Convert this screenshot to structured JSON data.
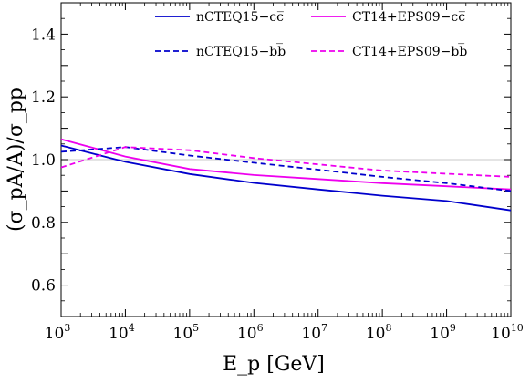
{
  "chart_data": {
    "type": "line",
    "xlabel": "E_p [GeV]",
    "ylabel": "(σ_pA/A)/σ_pp",
    "xscale": "log",
    "xlim": [
      1000,
      10000000000
    ],
    "ylim": [
      0.5,
      1.5
    ],
    "x_ticks": [
      {
        "base": "10",
        "exp": "3",
        "value": 1000
      },
      {
        "base": "10",
        "exp": "4",
        "value": 10000
      },
      {
        "base": "10",
        "exp": "5",
        "value": 100000
      },
      {
        "base": "10",
        "exp": "6",
        "value": 1000000
      },
      {
        "base": "10",
        "exp": "7",
        "value": 10000000
      },
      {
        "base": "10",
        "exp": "8",
        "value": 100000000
      },
      {
        "base": "10",
        "exp": "9",
        "value": 1000000000
      },
      {
        "base": "10",
        "exp": "10",
        "value": 10000000000
      }
    ],
    "y_ticks": [
      {
        "label": "0.6",
        "value": 0.6
      },
      {
        "label": "0.8",
        "value": 0.8
      },
      {
        "label": "1.0",
        "value": 1.0
      },
      {
        "label": "1.2",
        "value": 1.2
      },
      {
        "label": "1.4",
        "value": 1.4
      }
    ],
    "reference_line": 1.0,
    "legend_position": "top",
    "series": [
      {
        "name": "nCTEQ15−cc̅",
        "color": "#0000cc",
        "dash": "solid",
        "x": [
          1000,
          10000,
          100000,
          1000000,
          10000000,
          100000000,
          1000000000,
          10000000000
        ],
        "y": [
          1.045,
          0.993,
          0.954,
          0.926,
          0.905,
          0.885,
          0.868,
          0.838
        ]
      },
      {
        "name": "CT14+EPS09−cc̅",
        "color": "#ee00ee",
        "dash": "solid",
        "x": [
          1000,
          10000,
          100000,
          1000000,
          10000000,
          100000000,
          1000000000,
          10000000000
        ],
        "y": [
          1.065,
          1.01,
          0.97,
          0.951,
          0.938,
          0.925,
          0.915,
          0.905
        ]
      },
      {
        "name": "nCTEQ15−bb̅",
        "color": "#0000cc",
        "dash": "dashed",
        "x": [
          1000,
          10000,
          100000,
          1000000,
          10000000,
          100000000,
          1000000000,
          10000000000
        ],
        "y": [
          1.025,
          1.04,
          1.013,
          0.99,
          0.968,
          0.945,
          0.925,
          0.9
        ]
      },
      {
        "name": "CT14+EPS09−bb̅",
        "color": "#ee00ee",
        "dash": "dashed",
        "x": [
          1000,
          10000,
          100000,
          1000000,
          10000000,
          100000000,
          1000000000,
          10000000000
        ],
        "y": [
          0.975,
          1.04,
          1.03,
          1.005,
          0.985,
          0.965,
          0.955,
          0.945
        ]
      }
    ]
  }
}
